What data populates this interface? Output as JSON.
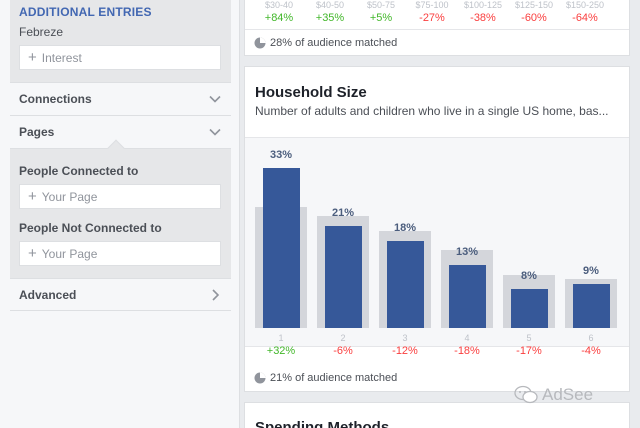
{
  "sidebar": {
    "additional_entries": {
      "title": "ADDITIONAL ENTRIES",
      "entry": "Febreze",
      "input_placeholder": "Interest"
    },
    "connections_label": "Connections",
    "pages_label": "Pages",
    "people_connected_label": "People Connected to",
    "people_connected_placeholder": "Your Page",
    "people_not_connected_label": "People Not Connected to",
    "people_not_connected_placeholder": "Your Page",
    "advanced_label": "Advanced"
  },
  "income_card": {
    "columns": [
      {
        "range": "$30-40",
        "delta": "+84%"
      },
      {
        "range": "$40-50",
        "delta": "+35%"
      },
      {
        "range": "$50-75",
        "delta": "+5%"
      },
      {
        "range": "$75-100",
        "delta": "-27%"
      },
      {
        "range": "$100-125",
        "delta": "-38%"
      },
      {
        "range": "$125-150",
        "delta": "-60%"
      },
      {
        "range": "$150-250",
        "delta": "-64%"
      }
    ],
    "matched_text": "28% of audience matched"
  },
  "household_card": {
    "title": "Household Size",
    "description": "Number of adults and children who live in a single US home, bas...",
    "matched_text": "21% of audience matched"
  },
  "chart_data": {
    "type": "bar",
    "categories": [
      "1",
      "2",
      "3",
      "4",
      "5",
      "6"
    ],
    "series": [
      {
        "values": [
          33,
          21,
          18,
          13,
          8,
          9
        ]
      },
      {
        "values": [
          25,
          23,
          20,
          16,
          11,
          10
        ]
      }
    ],
    "data_labels": [
      "33%",
      "21%",
      "18%",
      "13%",
      "8%",
      "9%"
    ],
    "deltas": [
      "+32%",
      "-6%",
      "-12%",
      "-18%",
      "-17%",
      "-4%"
    ],
    "ylim": [
      0,
      35
    ]
  },
  "spending_card": {
    "title": "Spending Methods"
  },
  "watermark": {
    "text": "AdSee"
  },
  "colors": {
    "accent": "#4267b2",
    "bar": "#365899",
    "bar_bg": "#d4d6db",
    "positive": "#42b72a",
    "negative": "#fa3e3e"
  }
}
